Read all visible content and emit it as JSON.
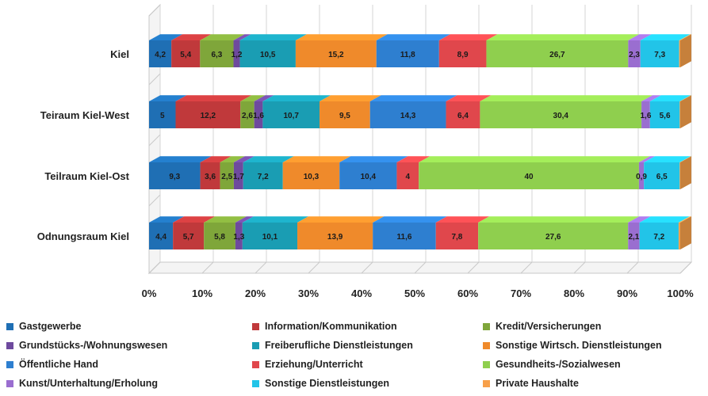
{
  "chart_data": {
    "type": "bar",
    "orientation": "horizontal",
    "stacked": "percent",
    "categories": [
      "Kiel",
      "Teiraum Kiel-West",
      "Teilraum Kiel-Ost",
      "Odnungsraum Kiel"
    ],
    "x_ticks": [
      "0%",
      "10%",
      "20%",
      "30%",
      "40%",
      "50%",
      "60%",
      "70%",
      "80%",
      "90%",
      "100%"
    ],
    "xlim": [
      0,
      100
    ],
    "legend_position": "bottom",
    "series": [
      {
        "name": "Gastgewerbe",
        "color": "#1f6fb4",
        "values": [
          4.2,
          5,
          9.3,
          4.4
        ],
        "labels": [
          "4,2",
          "5",
          "9,3",
          "4,4"
        ]
      },
      {
        "name": "Information/Kommunikation",
        "color": "#c0393b",
        "values": [
          5.4,
          12.2,
          3.6,
          5.7
        ],
        "labels": [
          "5,4",
          "12,2",
          "3,6",
          "5,7"
        ]
      },
      {
        "name": "Kredit/Versicherungen",
        "color": "#7fa63a",
        "values": [
          6.3,
          2.6,
          2.5,
          5.8
        ],
        "labels": [
          "6,3",
          "2,6",
          "2,5",
          "5,8"
        ]
      },
      {
        "name": "Grundstücks-/Wohnungswesen",
        "color": "#6e4a9e",
        "values": [
          1.2,
          1.6,
          1.7,
          1.3
        ],
        "labels": [
          "1,2",
          "1,6",
          "1,7",
          "1,3"
        ]
      },
      {
        "name": "Freiberufliche Dienstleistungen",
        "color": "#1a9db3",
        "values": [
          10.5,
          10.7,
          7.2,
          10.1
        ],
        "labels": [
          "10,5",
          "10,7",
          "7,2",
          "10,1"
        ]
      },
      {
        "name": "Sonstige Wirtsch. Dienstleistungen",
        "color": "#ef8a2b",
        "values": [
          15.2,
          9.5,
          10.3,
          13.9
        ],
        "labels": [
          "15,2",
          "9,5",
          "10,3",
          "13,9"
        ]
      },
      {
        "name": "Öffentliche Hand",
        "color": "#2e7fd0",
        "values": [
          11.8,
          14.3,
          10.4,
          11.6
        ],
        "labels": [
          "11,8",
          "14,3",
          "10,4",
          "11,6"
        ]
      },
      {
        "name": "Erziehung/Unterricht",
        "color": "#e0474c",
        "values": [
          8.9,
          6.4,
          4,
          7.8
        ],
        "labels": [
          "8,9",
          "6,4",
          "4",
          "7,8"
        ]
      },
      {
        "name": "Gesundheits-/Sozialwesen",
        "color": "#8fcf4e",
        "values": [
          26.7,
          30.4,
          40,
          27.6
        ],
        "labels": [
          "26,7",
          "30,4",
          "40",
          "27,6"
        ]
      },
      {
        "name": "Kunst/Unterhaltung/Erholung",
        "color": "#9a6ed0",
        "values": [
          2.3,
          1.6,
          0.9,
          2.1
        ],
        "labels": [
          "2,3",
          "1,6",
          "0,9",
          "2,1"
        ]
      },
      {
        "name": "Sonstige Dienstleistungen",
        "color": "#22c4e8",
        "values": [
          7.3,
          5.6,
          6.5,
          7.2
        ],
        "labels": [
          "7,3",
          "5,6",
          "6,5",
          "7,2"
        ]
      },
      {
        "name": "Private Haushalte",
        "color": "#f7a04a",
        "values": [
          0.2,
          0.1,
          0.1,
          0.3
        ],
        "labels": [
          "",
          "",
          "",
          ""
        ]
      }
    ]
  }
}
